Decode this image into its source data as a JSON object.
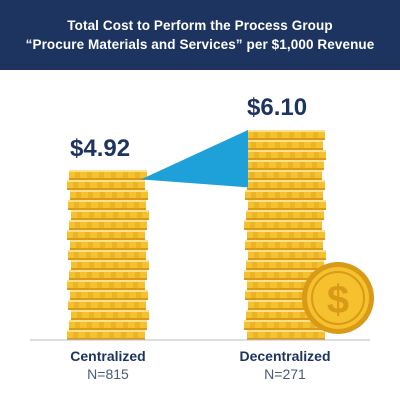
{
  "header": {
    "title_line1": "Total Cost to Perform the Process Group",
    "title_line2": "“Procure Materials and Services” per $1,000 Revenue"
  },
  "chart_data": {
    "type": "bar",
    "title": "Total Cost to Perform the Process Group “Procure Materials and Services” per $1,000 Revenue",
    "categories": [
      "Centralized",
      "Decentralized"
    ],
    "sample_sizes": [
      "N=815",
      "N=271"
    ],
    "values": [
      4.92,
      6.1
    ],
    "value_labels": [
      "$4.92",
      "$6.10"
    ],
    "ylim": [
      0,
      6.5
    ],
    "xlabel": "",
    "ylabel": "",
    "grid": false,
    "colors": {
      "coin": "#f5c12e",
      "coin_dark": "#d99a17",
      "coin_light": "#fde18a",
      "connector": "#1ea0d8",
      "navy": "#1d3461"
    }
  },
  "coin_icon": {
    "name": "dollar-coin-icon",
    "symbol": "$"
  }
}
